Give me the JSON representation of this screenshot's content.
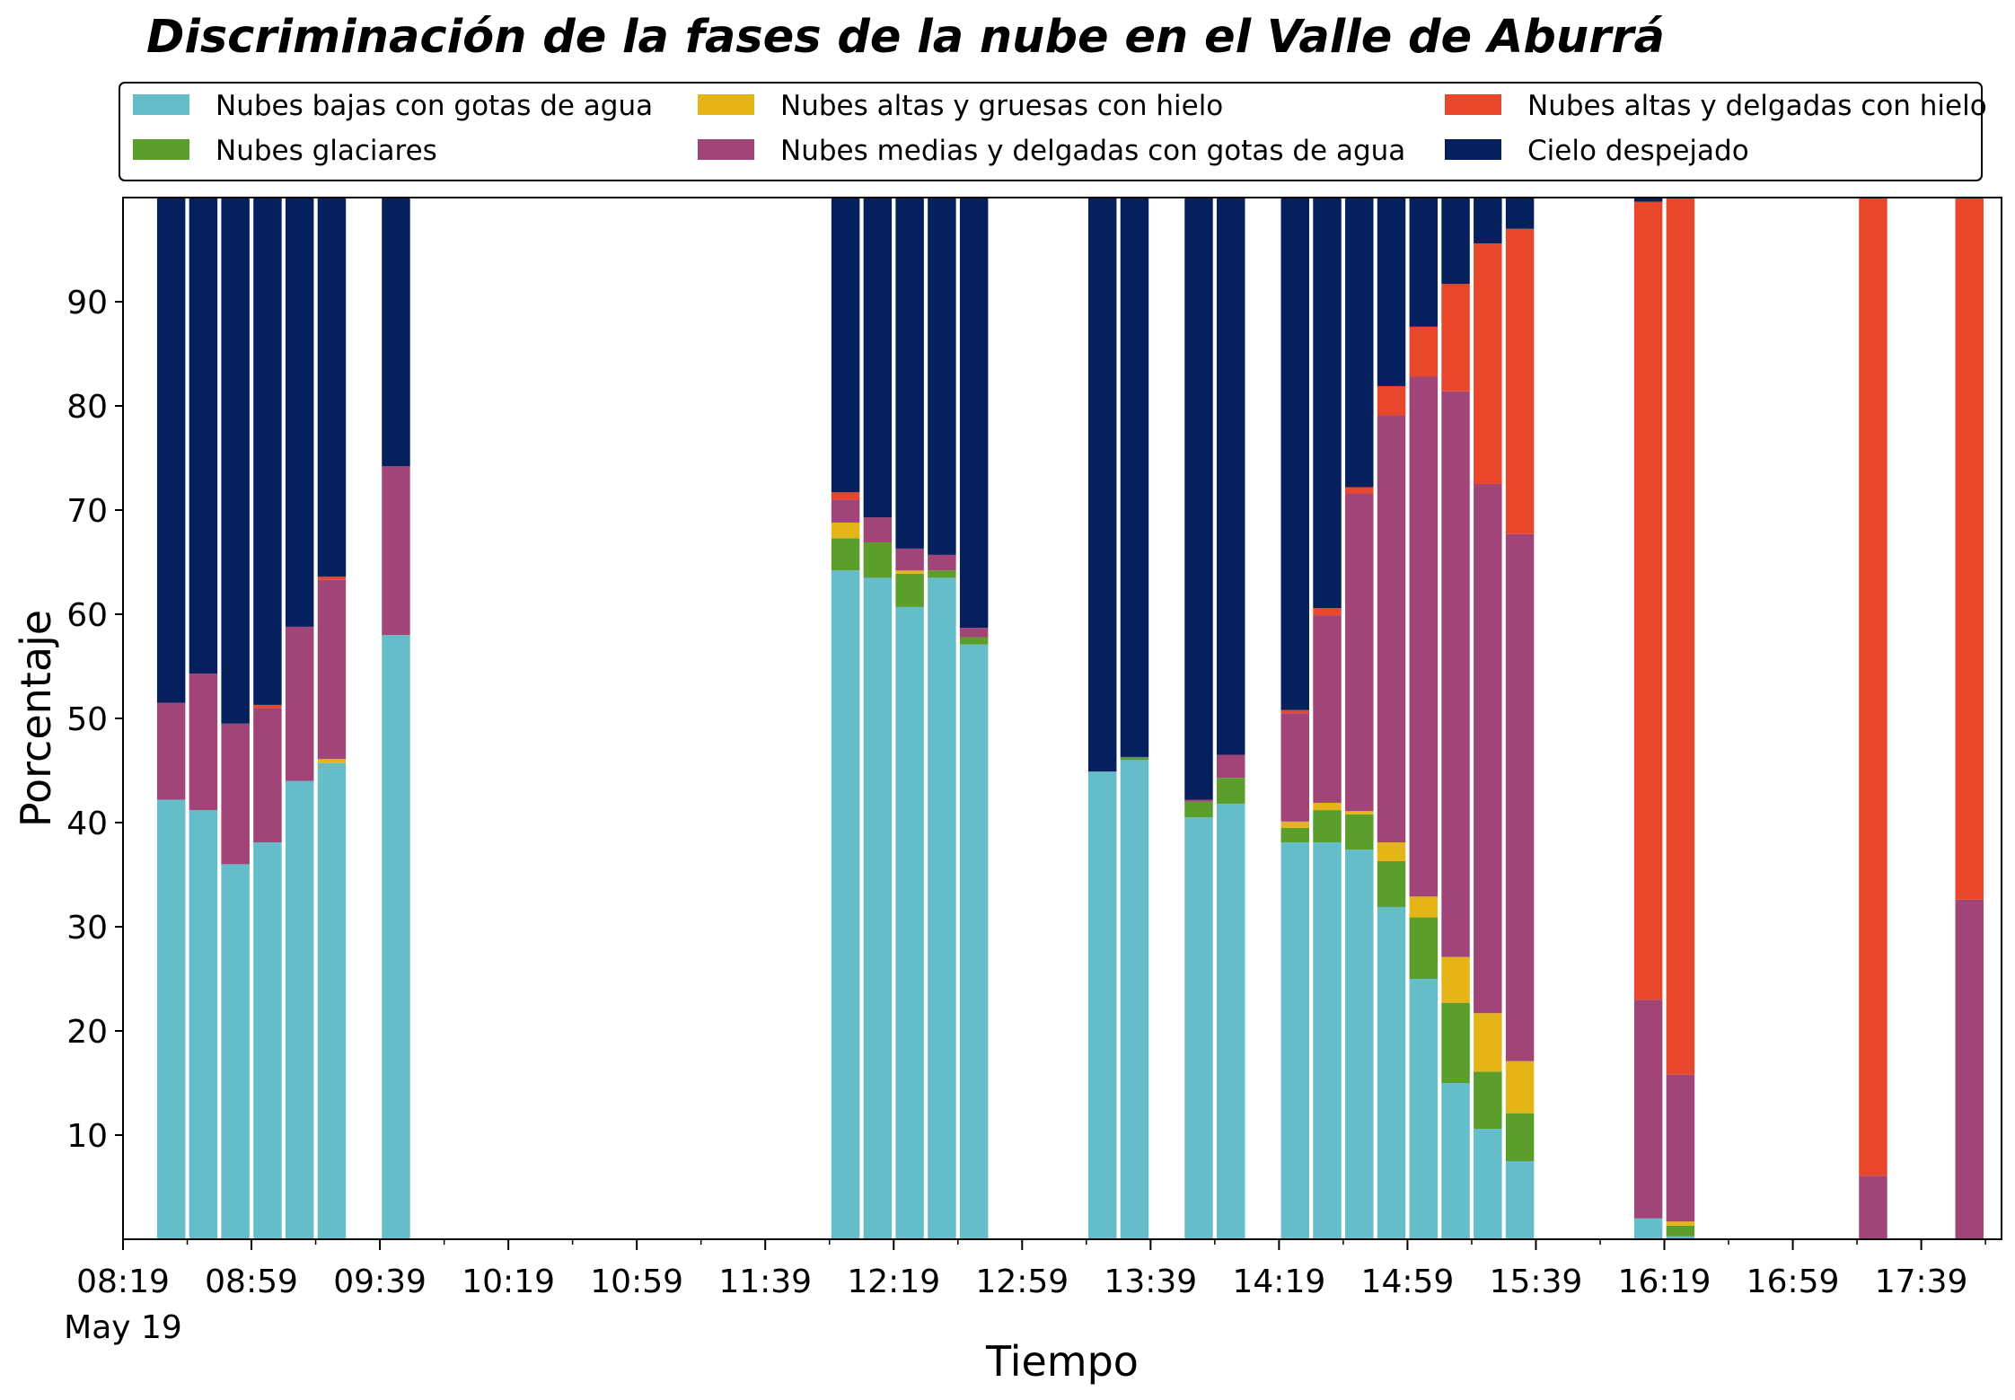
{
  "chart_data": {
    "type": "bar",
    "stacked": true,
    "title": "Discriminación de la fases de la nube en el Valle de Aburrá",
    "xlabel": "Tiempo",
    "ylabel": "Porcentaje",
    "ylim": [
      0,
      100
    ],
    "yticks": [
      10,
      20,
      30,
      40,
      50,
      60,
      70,
      80,
      90
    ],
    "xlim": [
      "08:19",
      "18:04"
    ],
    "xticks": [
      "08:19",
      "08:59",
      "09:39",
      "10:19",
      "10:59",
      "11:39",
      "12:19",
      "12:59",
      "13:39",
      "14:19",
      "14:59",
      "15:39",
      "16:19",
      "16:59",
      "17:39"
    ],
    "xtick_sublabel": "May 19",
    "grid": false,
    "legend_position": "top",
    "x": [
      "08:34",
      "08:44",
      "08:54",
      "09:04",
      "09:14",
      "09:24",
      "09:44",
      "12:04",
      "12:14",
      "12:24",
      "12:34",
      "12:44",
      "13:24",
      "13:34",
      "13:54",
      "14:04",
      "14:24",
      "14:34",
      "14:44",
      "14:54",
      "15:04",
      "15:14",
      "15:24",
      "15:34",
      "16:14",
      "16:24",
      "17:24",
      "17:54"
    ],
    "series": [
      {
        "name": "Nubes bajas con gotas de agua",
        "color": "#65bdc9",
        "values": [
          42.2,
          41.2,
          36.0,
          38.1,
          44.0,
          45.7,
          58.0,
          64.2,
          63.5,
          60.7,
          63.5,
          57.1,
          44.9,
          46.0,
          40.5,
          41.8,
          38.1,
          38.1,
          37.4,
          31.9,
          25.0,
          15.0,
          10.6,
          7.5,
          2.0,
          0.3,
          0,
          0
        ]
      },
      {
        "name": "Nubes glaciares",
        "color": "#5c9e2b",
        "values": [
          0,
          0,
          0,
          0,
          0,
          0,
          0,
          3.1,
          3.4,
          3.2,
          0.7,
          0.7,
          0,
          0.3,
          1.5,
          2.5,
          1.4,
          3.1,
          3.4,
          4.4,
          5.9,
          7.7,
          5.5,
          4.6,
          0,
          1.0,
          0,
          0
        ]
      },
      {
        "name": "Nubes altas y gruesas con hielo",
        "color": "#e5b517",
        "values": [
          0,
          0,
          0,
          0,
          0,
          0.4,
          0,
          1.5,
          0,
          0.3,
          0,
          0,
          0,
          0,
          0,
          0,
          0.6,
          0.7,
          0.3,
          1.8,
          2.0,
          4.4,
          5.6,
          5.0,
          0,
          0.4,
          0,
          0
        ]
      },
      {
        "name": "Nubes medias y delgadas con gotas de agua",
        "color": "#a14478",
        "values": [
          9.3,
          13.1,
          13.5,
          12.9,
          14.8,
          17.2,
          16.2,
          2.2,
          2.4,
          2.1,
          1.5,
          0.9,
          0,
          0,
          0.2,
          2.2,
          10.4,
          18.0,
          30.5,
          41.0,
          49.9,
          54.3,
          50.8,
          50.6,
          21.0,
          14.1,
          6.1,
          32.6
        ]
      },
      {
        "name": "Nubes altas y delgadas con hielo",
        "color": "#e9472c",
        "values": [
          0,
          0,
          0,
          0.3,
          0,
          0.3,
          0,
          0.7,
          0,
          0,
          0,
          0,
          0,
          0,
          0,
          0,
          0.3,
          0.7,
          0.6,
          2.8,
          4.8,
          10.3,
          23.1,
          29.3,
          76.6,
          84.2,
          93.9,
          67.4
        ]
      },
      {
        "name": "Cielo despejado",
        "color": "#05205c",
        "values": [
          48.5,
          45.7,
          50.5,
          48.7,
          41.2,
          36.4,
          25.8,
          28.3,
          30.7,
          33.7,
          34.3,
          41.3,
          55.1,
          53.7,
          57.8,
          53.5,
          49.2,
          39.4,
          27.8,
          18.1,
          12.4,
          8.3,
          4.4,
          3.0,
          0.4,
          0,
          0,
          0
        ]
      }
    ]
  }
}
